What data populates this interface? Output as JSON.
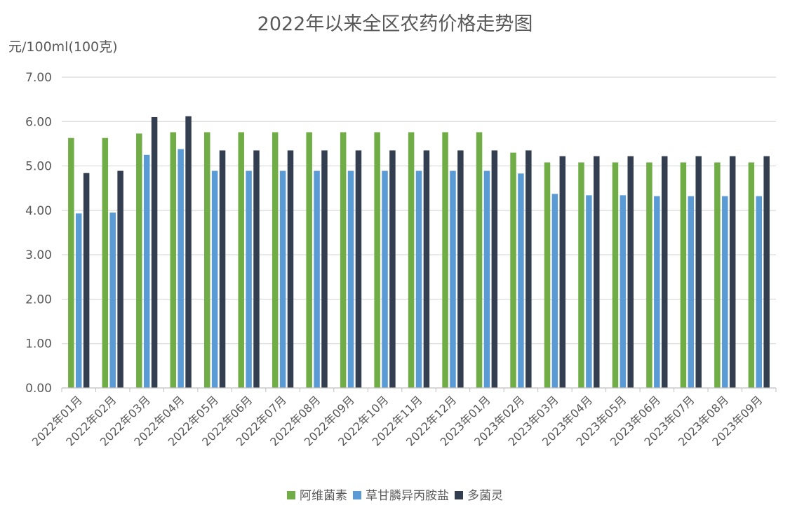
{
  "chart_data": {
    "type": "bar",
    "title": "2022年以来全区农药价格走势图",
    "ylabel": "元/100ml(100克)",
    "xlabel": "",
    "ylim": [
      0,
      7
    ],
    "yticks": [
      "0.00",
      "1.00",
      "2.00",
      "3.00",
      "4.00",
      "5.00",
      "6.00",
      "7.00"
    ],
    "ytick_values": [
      0,
      1,
      2,
      3,
      4,
      5,
      6,
      7
    ],
    "grid": true,
    "legend_position": "bottom",
    "categories": [
      "2022年01月",
      "2022年02月",
      "2022年03月",
      "2022年04月",
      "2022年05月",
      "2022年06月",
      "2022年07月",
      "2022年08月",
      "2022年09月",
      "2022年10月",
      "2022年11月",
      "2022年12月",
      "2023年01月",
      "2023年02月",
      "2023年03月",
      "2023年04月",
      "2023年05月",
      "2023年06月",
      "2023年07月",
      "2023年08月",
      "2023年09月"
    ],
    "series": [
      {
        "name": "阿维菌素",
        "color": "#70ad47",
        "values": [
          5.63,
          5.63,
          5.73,
          5.76,
          5.76,
          5.76,
          5.76,
          5.76,
          5.76,
          5.76,
          5.76,
          5.76,
          5.76,
          5.3,
          5.08,
          5.08,
          5.08,
          5.08,
          5.08,
          5.08,
          5.08
        ]
      },
      {
        "name": "草甘膦异丙胺盐",
        "color": "#5b9bd5",
        "values": [
          3.93,
          3.95,
          5.25,
          5.38,
          4.89,
          4.89,
          4.89,
          4.89,
          4.89,
          4.89,
          4.89,
          4.89,
          4.89,
          4.83,
          4.37,
          4.34,
          4.34,
          4.32,
          4.32,
          4.32,
          4.32
        ]
      },
      {
        "name": "多菌灵",
        "color": "#333f50",
        "values": [
          4.84,
          4.89,
          6.1,
          6.12,
          5.35,
          5.35,
          5.35,
          5.35,
          5.35,
          5.35,
          5.35,
          5.35,
          5.35,
          5.35,
          5.22,
          5.22,
          5.22,
          5.22,
          5.22,
          5.22,
          5.22
        ]
      }
    ]
  },
  "colors": {
    "gridline": "#d9d9d9",
    "axis": "#bfbfbf",
    "text": "#595959"
  }
}
